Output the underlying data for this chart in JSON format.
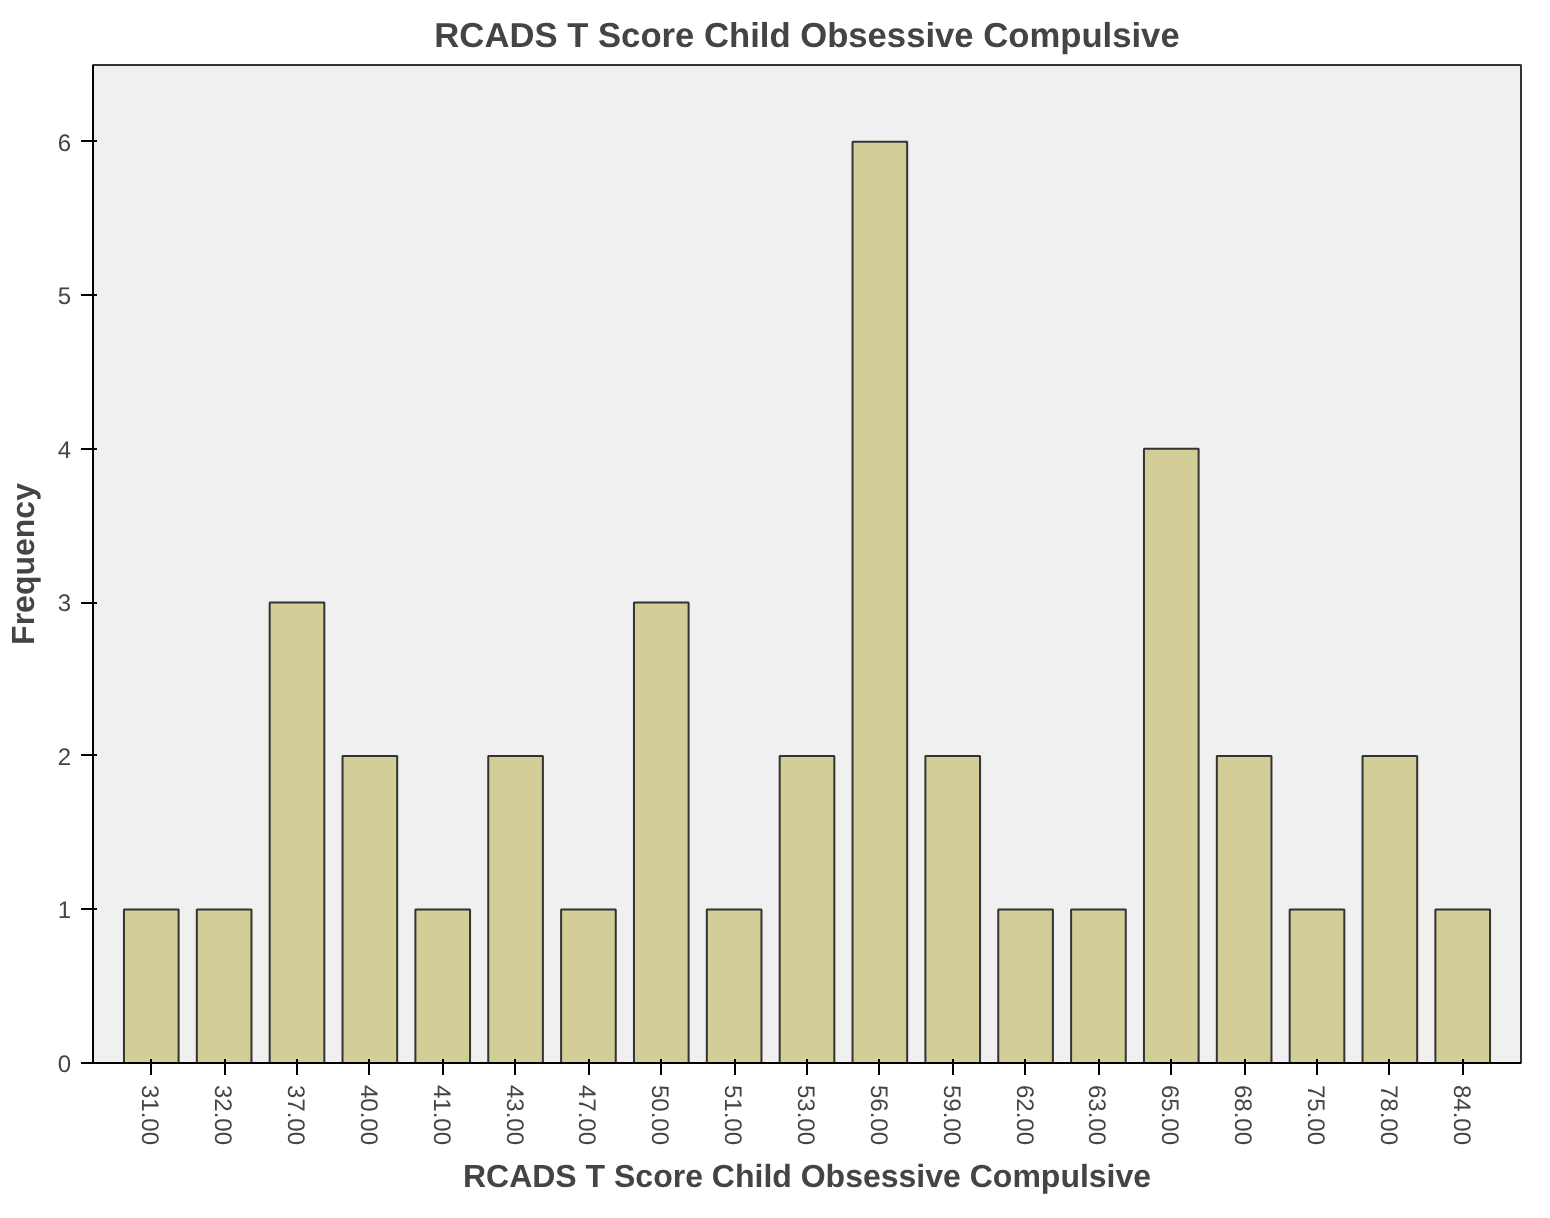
{
  "chart_data": {
    "type": "bar",
    "title": "RCADS T Score Child Obsessive Compulsive",
    "xlabel": "RCADS T Score Child Obsessive Compulsive",
    "ylabel": "Frequency",
    "categories": [
      "31.00",
      "32.00",
      "37.00",
      "40.00",
      "41.00",
      "43.00",
      "47.00",
      "50.00",
      "51.00",
      "53.00",
      "56.00",
      "59.00",
      "62.00",
      "63.00",
      "65.00",
      "68.00",
      "75.00",
      "78.00",
      "84.00"
    ],
    "values": [
      1,
      1,
      3,
      2,
      1,
      2,
      1,
      3,
      1,
      2,
      6,
      2,
      1,
      1,
      4,
      2,
      1,
      2,
      1
    ],
    "color": "#d3ce97",
    "ylim": [
      0,
      6.5
    ],
    "yticks": [
      0,
      1,
      2,
      3,
      4,
      5,
      6
    ],
    "grid": false
  }
}
